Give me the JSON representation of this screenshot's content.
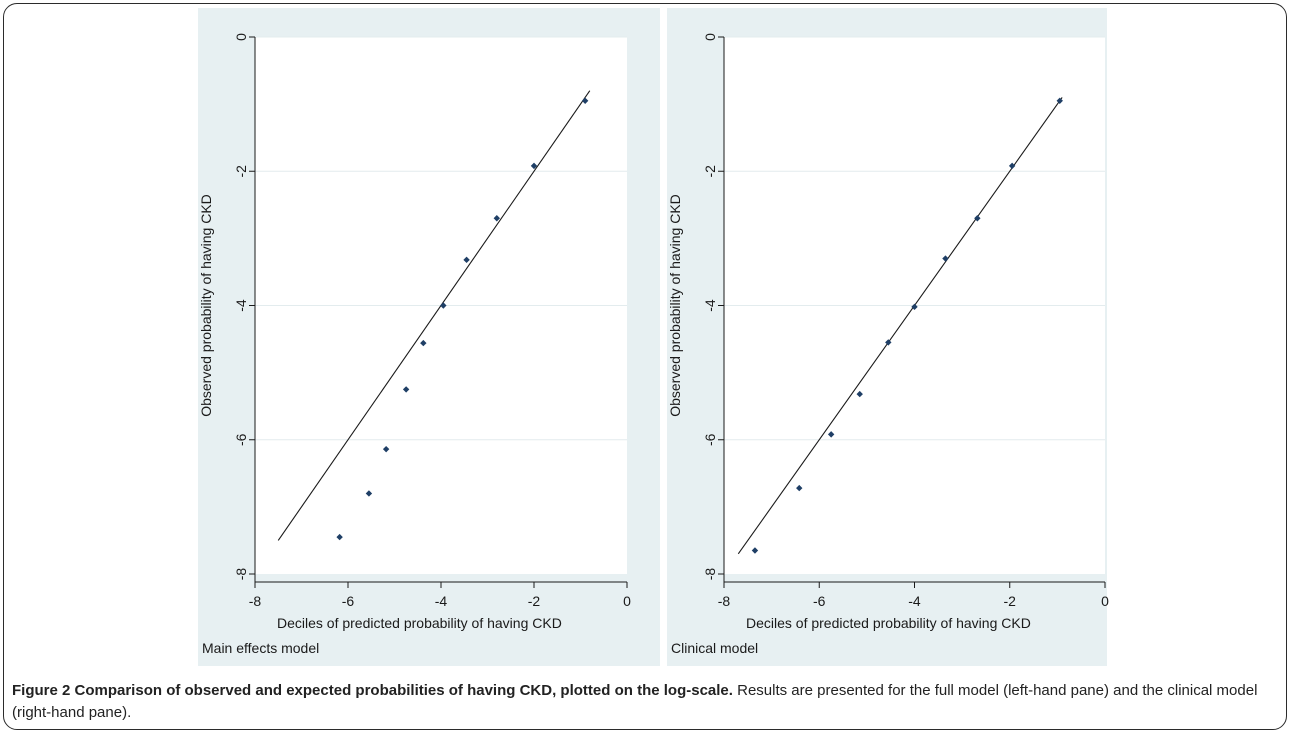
{
  "caption": {
    "title": "Figure 2 Comparison of observed and expected probabilities of having CKD, plotted on the log-scale.",
    "text": "Results are presented for the full model (left-hand pane) and the clinical model (right-hand pane)."
  },
  "colors": {
    "panel_bg": "#e7f0f2",
    "plot_bg": "#ffffff",
    "marker": "#1f3f66",
    "line": "#1a1a1a",
    "grid": "#e3ecee"
  },
  "chart_data": [
    {
      "type": "scatter",
      "subtitle": "Main effects model",
      "xlabel": "Deciles of predicted probability of having CKD",
      "ylabel": "Observed probability of having CKD",
      "xlim": [
        -8,
        0
      ],
      "ylim": [
        -8,
        0
      ],
      "xticks": [
        -8,
        -6,
        -4,
        -2,
        0
      ],
      "yticks": [
        0,
        -2,
        -4,
        -6,
        -8
      ],
      "grid": true,
      "points": [
        {
          "x": -0.9,
          "y": -0.95
        },
        {
          "x": -2.0,
          "y": -1.92
        },
        {
          "x": -2.8,
          "y": -2.7
        },
        {
          "x": -3.45,
          "y": -3.32
        },
        {
          "x": -3.95,
          "y": -4.0
        },
        {
          "x": -4.38,
          "y": -4.56
        },
        {
          "x": -4.75,
          "y": -5.25
        },
        {
          "x": -5.18,
          "y": -6.14
        },
        {
          "x": -5.55,
          "y": -6.8
        },
        {
          "x": -6.18,
          "y": -7.45
        }
      ],
      "line": {
        "from": [
          -7.5,
          -7.5
        ],
        "to": [
          -0.8,
          -0.8
        ]
      }
    },
    {
      "type": "scatter",
      "subtitle": "Clinical model",
      "xlabel": "Deciles of predicted probability of having CKD",
      "ylabel": "Observed probability of having CKD",
      "xlim": [
        -8,
        0
      ],
      "ylim": [
        -8,
        0
      ],
      "xticks": [
        -8,
        -6,
        -4,
        -2,
        0
      ],
      "yticks": [
        0,
        -2,
        -4,
        -6,
        -8
      ],
      "grid": true,
      "points": [
        {
          "x": -0.95,
          "y": -0.95
        },
        {
          "x": -1.95,
          "y": -1.92
        },
        {
          "x": -2.68,
          "y": -2.7
        },
        {
          "x": -3.35,
          "y": -3.3
        },
        {
          "x": -4.0,
          "y": -4.02
        },
        {
          "x": -4.55,
          "y": -4.55
        },
        {
          "x": -5.15,
          "y": -5.32
        },
        {
          "x": -5.75,
          "y": -5.92
        },
        {
          "x": -6.42,
          "y": -6.72
        },
        {
          "x": -7.35,
          "y": -7.65
        }
      ],
      "line": {
        "from": [
          -7.7,
          -7.7
        ],
        "to": [
          -0.9,
          -0.9
        ]
      }
    }
  ]
}
